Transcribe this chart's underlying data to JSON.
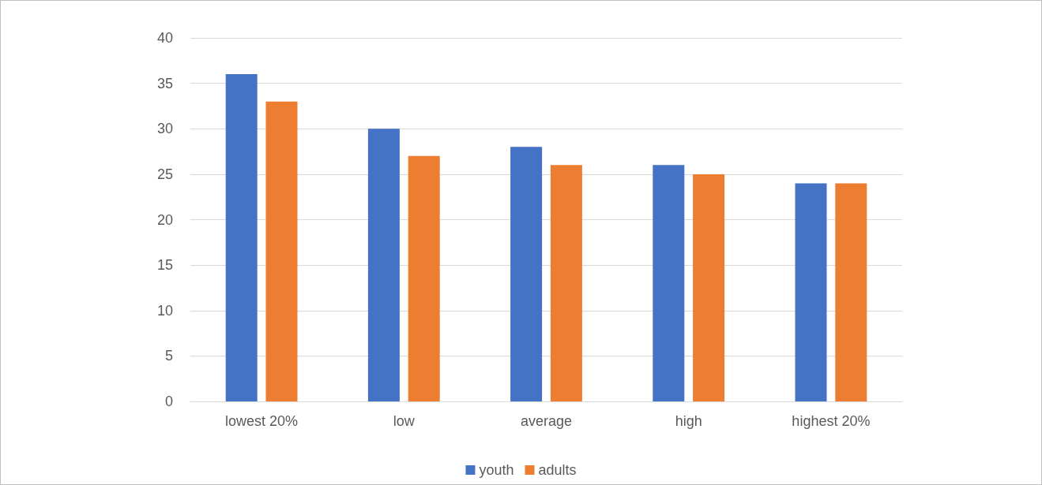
{
  "chart_data": {
    "type": "bar",
    "categories": [
      "lowest 20%",
      "low",
      "average",
      "high",
      "highest 20%"
    ],
    "series": [
      {
        "name": "youth",
        "color": "#4472c4",
        "values": [
          36,
          30,
          28,
          26,
          24
        ]
      },
      {
        "name": "adults",
        "color": "#ed7d31",
        "values": [
          33,
          27,
          26,
          25,
          24
        ]
      }
    ],
    "ylim": [
      0,
      40
    ],
    "yticks": [
      0,
      5,
      10,
      15,
      20,
      25,
      30,
      35,
      40
    ],
    "grid": "y",
    "legend": "bottom"
  }
}
